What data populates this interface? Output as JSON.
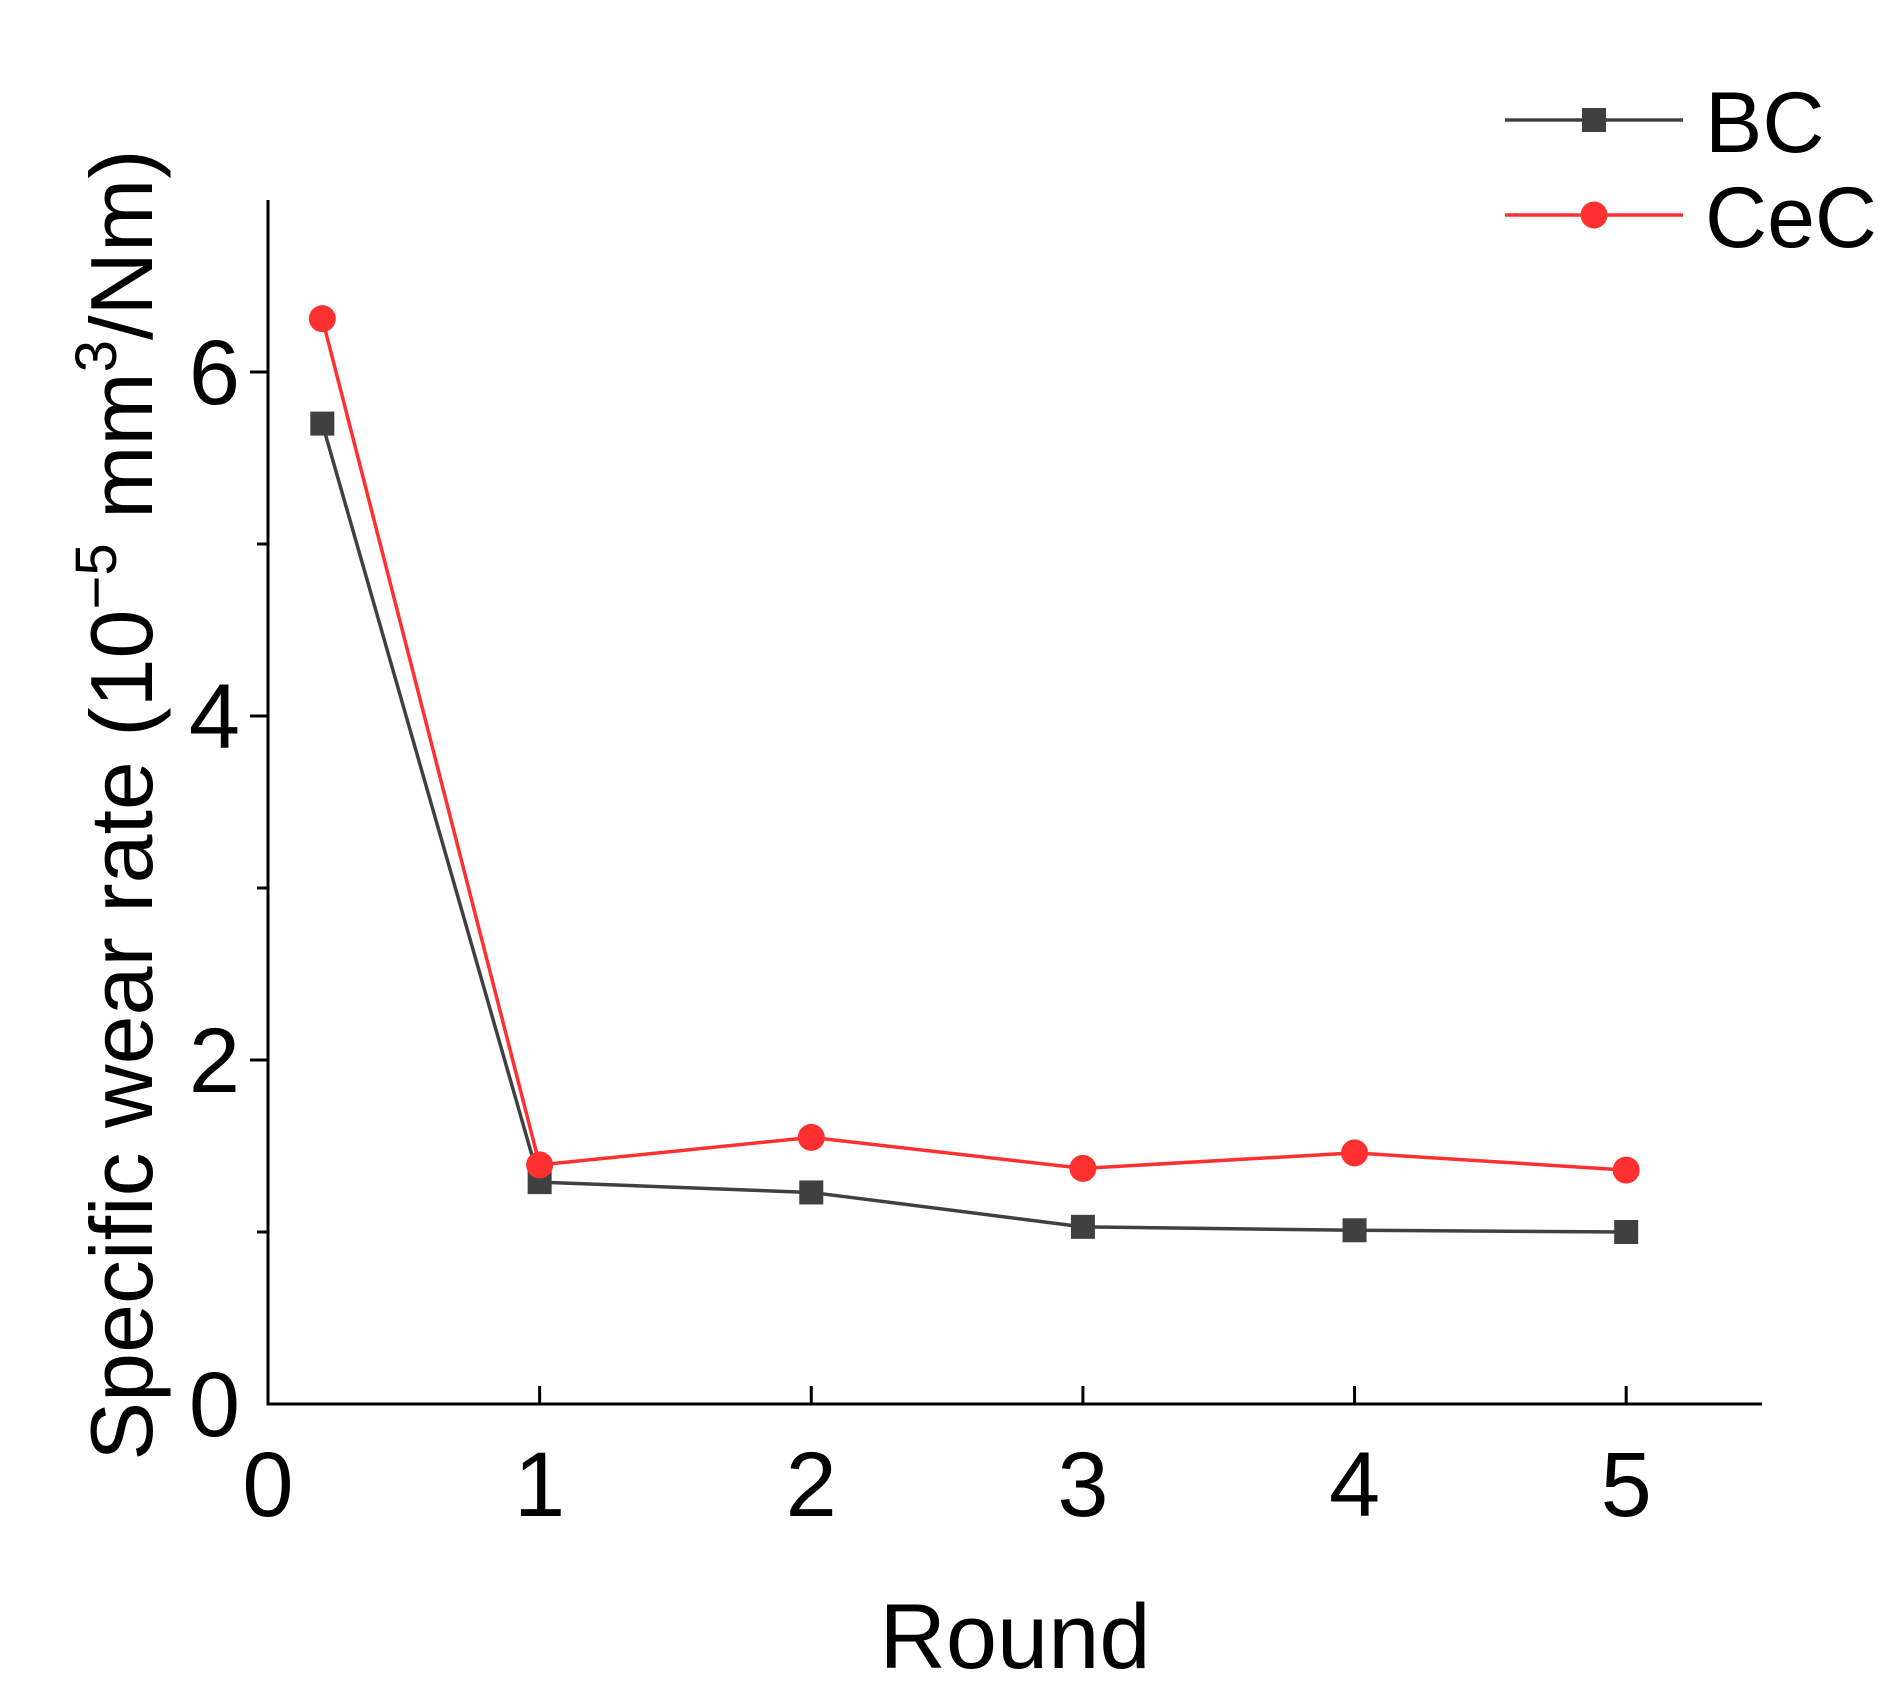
{
  "chart_data": {
    "type": "line",
    "title": "",
    "xlabel": "Round",
    "ylabel_main": "Specific wear rate (10",
    "ylabel_exp1": "−5",
    "ylabel_mid": " mm",
    "ylabel_exp2": "3",
    "ylabel_end": "/Nm)",
    "xlim": [
      0,
      5.5
    ],
    "ylim": [
      0,
      7
    ],
    "xticks": [
      0,
      1,
      2,
      3,
      4,
      5
    ],
    "xtick_labels": [
      "0",
      "1",
      "2",
      "3",
      "4",
      "5"
    ],
    "yticks_major": [
      0,
      2,
      4,
      6
    ],
    "ytick_labels": [
      "0",
      "2",
      "4",
      "6"
    ],
    "yticks_minor": [
      1,
      3,
      5
    ],
    "grid": false,
    "legend_position": "top-right",
    "series": [
      {
        "name": "BC",
        "color": "#404040",
        "marker": "square",
        "x": [
          0.2,
          1,
          2,
          3,
          4,
          5
        ],
        "y": [
          5.7,
          1.29,
          1.23,
          1.03,
          1.01,
          1.0
        ]
      },
      {
        "name": "CeC",
        "color": "#ff3030",
        "marker": "circle",
        "x": [
          0.2,
          1,
          2,
          3,
          4,
          5
        ],
        "y": [
          6.31,
          1.39,
          1.55,
          1.37,
          1.46,
          1.36
        ]
      }
    ]
  }
}
